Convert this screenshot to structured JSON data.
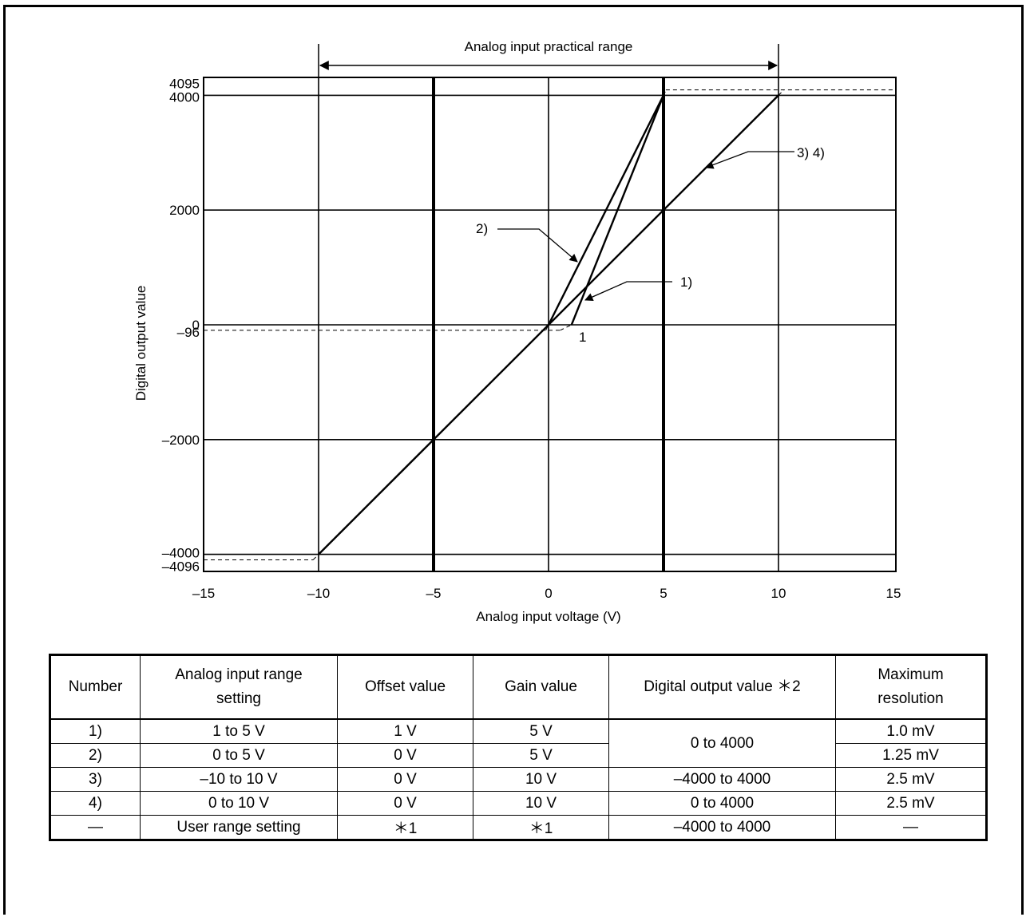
{
  "chart_data": {
    "type": "line",
    "title": "Analog input practical range",
    "xlabel": "Analog input voltage (V)",
    "ylabel": "Digital output value",
    "xlim": [
      -15,
      15
    ],
    "ylim": [
      -4096,
      4095
    ],
    "x_ticks": [
      -15,
      -10,
      -5,
      0,
      5,
      10,
      15
    ],
    "x_tick_labels": [
      "–15",
      "–10",
      "–5",
      "0",
      "5",
      "10",
      "15"
    ],
    "y_ticks": [
      4095,
      4000,
      2000,
      0,
      -96,
      -2000,
      -4000,
      -4096
    ],
    "y_tick_labels": [
      "4095",
      "4000",
      "2000",
      "0",
      "–96",
      "–2000",
      "–4000",
      "–4096"
    ],
    "grid": true,
    "practical_range_v": [
      -10,
      10
    ],
    "series": [
      {
        "name": "1)",
        "points": [
          [
            1,
            0
          ],
          [
            5,
            4000
          ]
        ],
        "limit_points": [
          [
            0.5,
            -96
          ],
          [
            1,
            0
          ],
          [
            5,
            4000
          ],
          [
            5.1,
            4095
          ]
        ]
      },
      {
        "name": "2)",
        "points": [
          [
            0,
            0
          ],
          [
            5,
            4000
          ]
        ],
        "limit_points": [
          [
            -0.12,
            -96
          ],
          [
            0,
            0
          ],
          [
            5,
            4000
          ],
          [
            5.12,
            4095
          ]
        ]
      },
      {
        "name": "3) 4)",
        "points": [
          [
            -10,
            -4000
          ],
          [
            10,
            4000
          ]
        ],
        "limit_points": [
          [
            -10.24,
            -4096
          ],
          [
            -10,
            -4000
          ],
          [
            10,
            4000
          ],
          [
            10.24,
            4095
          ]
        ]
      }
    ],
    "annotations": [
      "1)",
      "2)",
      "3) 4)",
      "1"
    ]
  },
  "table": {
    "headers": [
      "Number",
      "Analog input range setting",
      "Offset value",
      "Gain value",
      "Digital output value ＊2",
      "Maximum resolution"
    ],
    "rows": [
      [
        "1)",
        "1 to 5 V",
        "1 V",
        "5 V",
        "0 to 4000",
        "1.0 mV"
      ],
      [
        "2)",
        "0 to 5 V",
        "0 V",
        "5 V",
        "",
        "1.25 mV"
      ],
      [
        "3)",
        "–10 to 10 V",
        "0 V",
        "10 V",
        "–4000 to 4000",
        "2.5 mV"
      ],
      [
        "4)",
        "0 to 10 V",
        "0 V",
        "10 V",
        "0 to 4000",
        "2.5 mV"
      ],
      [
        "—",
        "User range setting",
        "＊1",
        "＊1",
        "–4000 to 4000",
        "—"
      ]
    ]
  }
}
